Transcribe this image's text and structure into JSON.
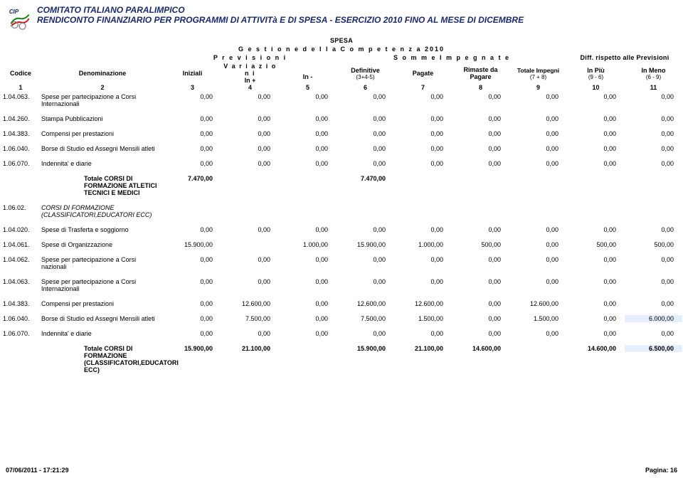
{
  "header": {
    "title1": "COMITATO ITALIANO PARALIMPICO",
    "title2": "RENDICONTO FINANZIARIO PER PROGRAMMI DI ATTIVITà E DI SPESA - ESERCIZIO 2010 FINO AL MESE DI DICEMBRE",
    "spesa": "SPESA",
    "gestione": "G e s t i o n e   d e l l a   C o m p e t e n z a   2010",
    "previsioni": "P r e v i s i o n i",
    "somme": "S o m m e   I m p e g n a t e",
    "diff": "Diff. rispetto alle Previsioni",
    "codice": "Codice",
    "denominazione": "Denominazione",
    "iniziali": "Iniziali",
    "variazioni": "V a r i a z i o n i",
    "inplus": "In +",
    "inminus": "In -",
    "definitive": "Definitive",
    "definitive2": "(3+4-5)",
    "pagate": "Pagate",
    "rimaste": "Rimaste da",
    "pagare": "Pagare",
    "totimpegni": "Totale Impegni",
    "totimpegni2": "(7 + 8)",
    "inpiu": "In Più",
    "inpiu2": "(9 - 6)",
    "inmeno": "In Meno",
    "inmeno2": "(6 - 9)",
    "colnums": [
      "1",
      "2",
      "3",
      "4",
      "5",
      "6",
      "7",
      "8",
      "9",
      "10",
      "11"
    ]
  },
  "rows": [
    {
      "code": "1.04.063.",
      "desc": "Spese per partecipazione a Corsi Internazionali",
      "v": [
        "0,00",
        "0,00",
        "0,00",
        "0,00",
        "0,00",
        "0,00",
        "0,00",
        "0,00",
        "0,00"
      ]
    },
    {
      "code": "1.04.260.",
      "desc": "Stampa Pubblicazioni",
      "v": [
        "0,00",
        "0,00",
        "0,00",
        "0,00",
        "0,00",
        "0,00",
        "0,00",
        "0,00",
        "0,00"
      ]
    },
    {
      "code": "1.04.383.",
      "desc": "Compensi per prestazioni",
      "v": [
        "0,00",
        "0,00",
        "0,00",
        "0,00",
        "0,00",
        "0,00",
        "0,00",
        "0,00",
        "0,00"
      ]
    },
    {
      "code": "1.06.040.",
      "desc": "Borse di Studio ed Assegni Mensili atleti",
      "v": [
        "0,00",
        "0,00",
        "0,00",
        "0,00",
        "0,00",
        "0,00",
        "0,00",
        "0,00",
        "0,00"
      ]
    },
    {
      "code": "1.06.070.",
      "desc": "Indennita' e diarie",
      "v": [
        "0,00",
        "0,00",
        "0,00",
        "0,00",
        "0,00",
        "0,00",
        "0,00",
        "0,00",
        "0,00"
      ]
    }
  ],
  "total1": {
    "label": "Totale CORSI DI FORMAZIONE ATLETICI TECNICI E MEDICI",
    "v": [
      "7.470,00",
      "",
      "",
      "7.470,00",
      "",
      "",
      "",
      "",
      ""
    ]
  },
  "section2": {
    "code": "1.06.02.",
    "desc": "CORSI DI FORMAZIONE (CLASSIFICATORI,EDUCATORI ECC)"
  },
  "rows2": [
    {
      "code": "1.04.020.",
      "desc": "Spese di Trasferta e soggiorno",
      "v": [
        "0,00",
        "0,00",
        "0,00",
        "0,00",
        "0,00",
        "0,00",
        "0,00",
        "0,00",
        "0,00"
      ]
    },
    {
      "code": "1.04.061.",
      "desc": "Spese di Organizzazione",
      "v": [
        "15.900,00",
        "",
        "1.000,00",
        "15.900,00",
        "1.000,00",
        "500,00",
        "0,00",
        "500,00",
        "0,00",
        "500,00"
      ],
      "hl": [
        8
      ]
    },
    {
      "code": "1.04.062.",
      "desc": "Spese per partecipazione a Corsi nazionali",
      "v": [
        "0,00",
        "0,00",
        "0,00",
        "0,00",
        "0,00",
        "0,00",
        "0,00",
        "0,00",
        "0,00"
      ]
    },
    {
      "code": "1.04.063.",
      "desc": "Spese per partecipazione a Corsi Internazionali",
      "v": [
        "0,00",
        "0,00",
        "0,00",
        "0,00",
        "0,00",
        "0,00",
        "0,00",
        "0,00",
        "0,00"
      ]
    },
    {
      "code": "1.04.383.",
      "desc": "Compensi per prestazioni",
      "v": [
        "0,00",
        "12.600,00",
        "0,00",
        "12.600,00",
        "12.600,00",
        "0,00",
        "12.600,00",
        "0,00",
        "0,00"
      ]
    },
    {
      "code": "1.06.040.",
      "desc": "Borse di Studio ed Assegni Mensili atleti",
      "v": [
        "0,00",
        "7.500,00",
        "0,00",
        "7.500,00",
        "1.500,00",
        "0,00",
        "1.500,00",
        "0,00",
        "6.000,00"
      ],
      "hl": [
        8
      ]
    },
    {
      "code": "1.06.070.",
      "desc": "Indennita' e diarie",
      "v": [
        "0,00",
        "0,00",
        "0,00",
        "0,00",
        "0,00",
        "0,00",
        "0,00",
        "0,00",
        "0,00"
      ]
    }
  ],
  "total2": {
    "label": "Totale CORSI DI FORMAZIONE (CLASSIFICATORI,EDUCATORI ECC)",
    "v": [
      "15.900,00",
      "21.100,00",
      "",
      "15.900,00",
      "21.100,00",
      "14.600,00",
      "",
      "14.600,00",
      "",
      "6.500,00"
    ],
    "hl": [
      9
    ]
  },
  "footer": {
    "left": "07/06/2011 - 17:21:29",
    "right": "Pagina: 16"
  },
  "colors": {
    "titleblue": "#1a2a6c",
    "hl": "#e6efff"
  }
}
